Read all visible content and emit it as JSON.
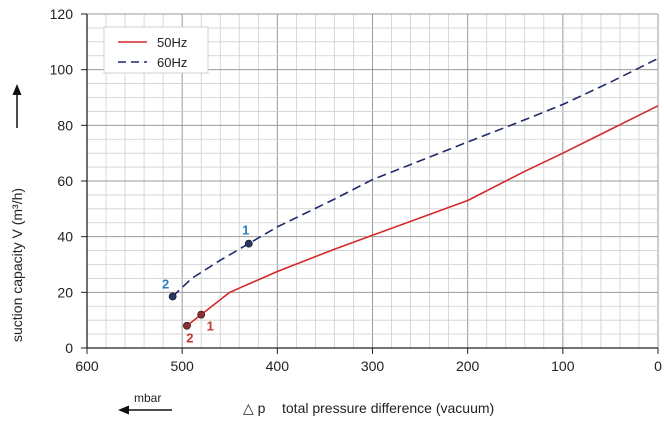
{
  "chart_data": {
    "type": "line",
    "xlabel": "total pressure difference (vacuum)",
    "xsymbol": "△ p",
    "xunit": "mbar",
    "ylabel": "suction capacity V (m³/h)",
    "xlim": [
      600,
      0
    ],
    "ylim": [
      0,
      120
    ],
    "x_ticks": [
      600,
      500,
      400,
      300,
      200,
      100,
      0
    ],
    "y_ticks": [
      0,
      20,
      40,
      60,
      80,
      100,
      120
    ],
    "x_minor_step": 20,
    "y_minor_step": 5,
    "grid": true,
    "legend_position": "top-left",
    "series": [
      {
        "name": "50Hz",
        "color": "#d62728",
        "dash": "solid",
        "x": [
          495,
          480,
          450,
          400,
          340,
          300,
          200,
          140,
          100,
          50,
          0
        ],
        "y": [
          8,
          12,
          20,
          27.5,
          35.5,
          40.5,
          53,
          63.5,
          70,
          78.5,
          87
        ]
      },
      {
        "name": "60Hz",
        "color": "#1f2a6b",
        "dash": "dashed",
        "x": [
          510,
          490,
          460,
          430,
          400,
          340,
          300,
          200,
          140,
          100,
          50,
          0
        ],
        "y": [
          18.5,
          25,
          31.5,
          37.5,
          43.5,
          53.5,
          60.5,
          74,
          82,
          87.5,
          95.5,
          104
        ]
      }
    ],
    "annotations": [
      {
        "label": "1",
        "series": "50Hz",
        "x": 480,
        "y": 12,
        "color": "#c0392b"
      },
      {
        "label": "2",
        "series": "50Hz",
        "x": 495,
        "y": 8,
        "color": "#c0392b"
      },
      {
        "label": "1",
        "series": "60Hz",
        "x": 430,
        "y": 37.5,
        "color": "#2a7fc1"
      },
      {
        "label": "2",
        "series": "60Hz",
        "x": 510,
        "y": 18.5,
        "color": "#2a7fc1"
      }
    ]
  }
}
